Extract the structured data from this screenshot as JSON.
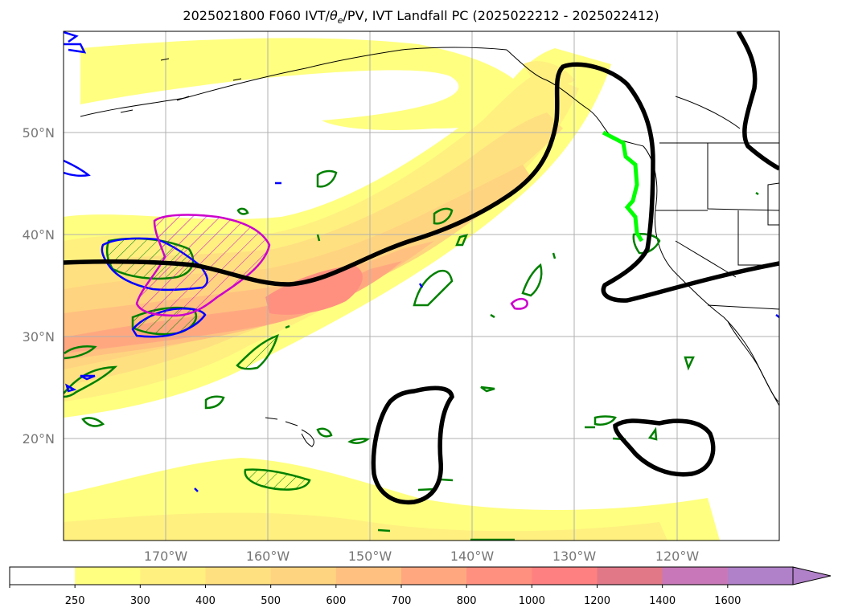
{
  "title": {
    "prefix": "2025021800 F060 IVT/",
    "theta": "θ",
    "theta_sub": "e",
    "suffix": "/PV, IVT Landfall PC (2025022212 - 2025022412)"
  },
  "map": {
    "projection": "cylindrical",
    "lon_range": [
      -180,
      -110
    ],
    "lat_range": [
      10,
      60
    ],
    "lat_gridlines": [
      {
        "value": 20,
        "label": "20°N"
      },
      {
        "value": 30,
        "label": "30°N"
      },
      {
        "value": 40,
        "label": "40°N"
      },
      {
        "value": 50,
        "label": "50°N"
      }
    ],
    "lon_gridlines": [
      {
        "value": -170,
        "label": "170°W"
      },
      {
        "value": -160,
        "label": "160°W"
      },
      {
        "value": -150,
        "label": "150°W"
      },
      {
        "value": -140,
        "label": "140°W"
      },
      {
        "value": -130,
        "label": "130°W"
      },
      {
        "value": -120,
        "label": "120°W"
      }
    ],
    "grid": true
  },
  "colorbar": {
    "unit": "",
    "extend": "max",
    "ticks": [
      "250",
      "300",
      "400",
      "500",
      "600",
      "700",
      "800",
      "1000",
      "1200",
      "1400",
      "1600"
    ],
    "colors": [
      "#ffffff",
      "#ffff80",
      "#fff080",
      "#ffe080",
      "#ffd480",
      "#ffc080",
      "#ffa880",
      "#ff9080",
      "#ff8080",
      "#e07888",
      "#c878b8",
      "#b080c8"
    ]
  },
  "colors": {
    "ivt_contour": "#000000",
    "theta_e": "#008000",
    "pv": "#0000ff",
    "magenta": "#cc00cc",
    "landfall": "#00ff00"
  }
}
